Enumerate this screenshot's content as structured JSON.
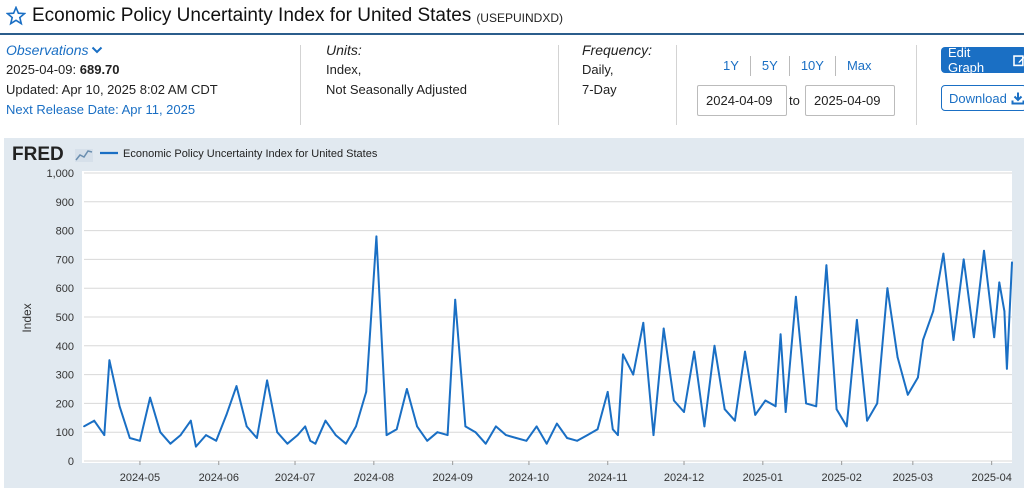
{
  "header": {
    "title": "Economic Policy Uncertainty Index for United States",
    "series_code": "(USEPUINDXD)"
  },
  "observations": {
    "label": "Observations",
    "date_label": "2025-04-09:",
    "value": "689.70",
    "updated": "Updated: Apr 10, 2025 8:02 AM CDT",
    "next_release": "Next Release Date: Apr 11, 2025"
  },
  "units": {
    "label": "Units:",
    "line1": "Index,",
    "line2": "Not Seasonally Adjusted"
  },
  "frequency": {
    "label": "Frequency:",
    "line1": "Daily,",
    "line2": "7-Day"
  },
  "range": {
    "tabs": [
      "1Y",
      "5Y",
      "10Y",
      "Max"
    ],
    "start": "2024-04-09",
    "to": "to",
    "end": "2025-04-09"
  },
  "buttons": {
    "edit": "Edit Graph",
    "download": "Download"
  },
  "colors": {
    "line": "#1a6fc4",
    "accent": "#1a6fc4",
    "panel": "#e1e9f0"
  },
  "chart_data": {
    "type": "line",
    "logo": "FRED",
    "legend": "Economic Policy Uncertainty Index for United States",
    "ylabel": "Index",
    "ylim": [
      0,
      1000
    ],
    "yticks": [
      0,
      100,
      200,
      300,
      400,
      500,
      600,
      700,
      800,
      900,
      "1,000"
    ],
    "x_start": "2024-04-09",
    "x_end": "2025-04-09",
    "xticks": [
      "2024-05",
      "2024-06",
      "2024-07",
      "2024-08",
      "2024-09",
      "2024-10",
      "2024-11",
      "2024-12",
      "2025-01",
      "2025-02",
      "2025-03",
      "2025-04"
    ],
    "series": [
      {
        "dates": [
          "2024-04-09",
          "2024-04-13",
          "2024-04-17",
          "2024-04-19",
          "2024-04-23",
          "2024-04-27",
          "2024-05-01",
          "2024-05-05",
          "2024-05-09",
          "2024-05-13",
          "2024-05-17",
          "2024-05-21",
          "2024-05-23",
          "2024-05-27",
          "2024-05-31",
          "2024-06-04",
          "2024-06-08",
          "2024-06-12",
          "2024-06-16",
          "2024-06-20",
          "2024-06-24",
          "2024-06-28",
          "2024-07-02",
          "2024-07-05",
          "2024-07-07",
          "2024-07-09",
          "2024-07-13",
          "2024-07-17",
          "2024-07-21",
          "2024-07-25",
          "2024-07-29",
          "2024-08-02",
          "2024-08-06",
          "2024-08-10",
          "2024-08-14",
          "2024-08-18",
          "2024-08-22",
          "2024-08-26",
          "2024-08-30",
          "2024-09-02",
          "2024-09-06",
          "2024-09-10",
          "2024-09-14",
          "2024-09-18",
          "2024-09-22",
          "2024-09-26",
          "2024-09-30",
          "2024-10-04",
          "2024-10-08",
          "2024-10-12",
          "2024-10-16",
          "2024-10-20",
          "2024-10-24",
          "2024-10-28",
          "2024-11-01",
          "2024-11-03",
          "2024-11-05",
          "2024-11-07",
          "2024-11-11",
          "2024-11-15",
          "2024-11-19",
          "2024-11-23",
          "2024-11-27",
          "2024-12-01",
          "2024-12-05",
          "2024-12-09",
          "2024-12-13",
          "2024-12-17",
          "2024-12-21",
          "2024-12-25",
          "2024-12-29",
          "2025-01-02",
          "2025-01-06",
          "2025-01-08",
          "2025-01-10",
          "2025-01-14",
          "2025-01-18",
          "2025-01-22",
          "2025-01-26",
          "2025-01-30",
          "2025-02-03",
          "2025-02-07",
          "2025-02-11",
          "2025-02-15",
          "2025-02-19",
          "2025-02-23",
          "2025-02-27",
          "2025-03-03",
          "2025-03-05",
          "2025-03-09",
          "2025-03-13",
          "2025-03-17",
          "2025-03-21",
          "2025-03-25",
          "2025-03-29",
          "2025-04-02",
          "2025-04-04",
          "2025-04-06",
          "2025-04-07",
          "2025-04-09"
        ],
        "values": [
          120,
          140,
          90,
          350,
          190,
          80,
          70,
          220,
          100,
          60,
          90,
          140,
          50,
          90,
          70,
          160,
          260,
          120,
          80,
          280,
          100,
          60,
          90,
          120,
          70,
          60,
          140,
          90,
          60,
          120,
          240,
          780,
          90,
          110,
          250,
          120,
          70,
          100,
          90,
          560,
          120,
          100,
          60,
          120,
          90,
          80,
          70,
          120,
          60,
          130,
          80,
          70,
          90,
          110,
          240,
          110,
          90,
          370,
          300,
          480,
          90,
          460,
          210,
          170,
          380,
          120,
          400,
          180,
          140,
          380,
          160,
          210,
          190,
          440,
          170,
          570,
          200,
          190,
          680,
          180,
          120,
          490,
          140,
          200,
          600,
          360,
          230,
          290,
          420,
          520,
          720,
          420,
          700,
          430,
          730,
          430,
          620,
          520,
          320,
          690
        ]
      }
    ]
  }
}
